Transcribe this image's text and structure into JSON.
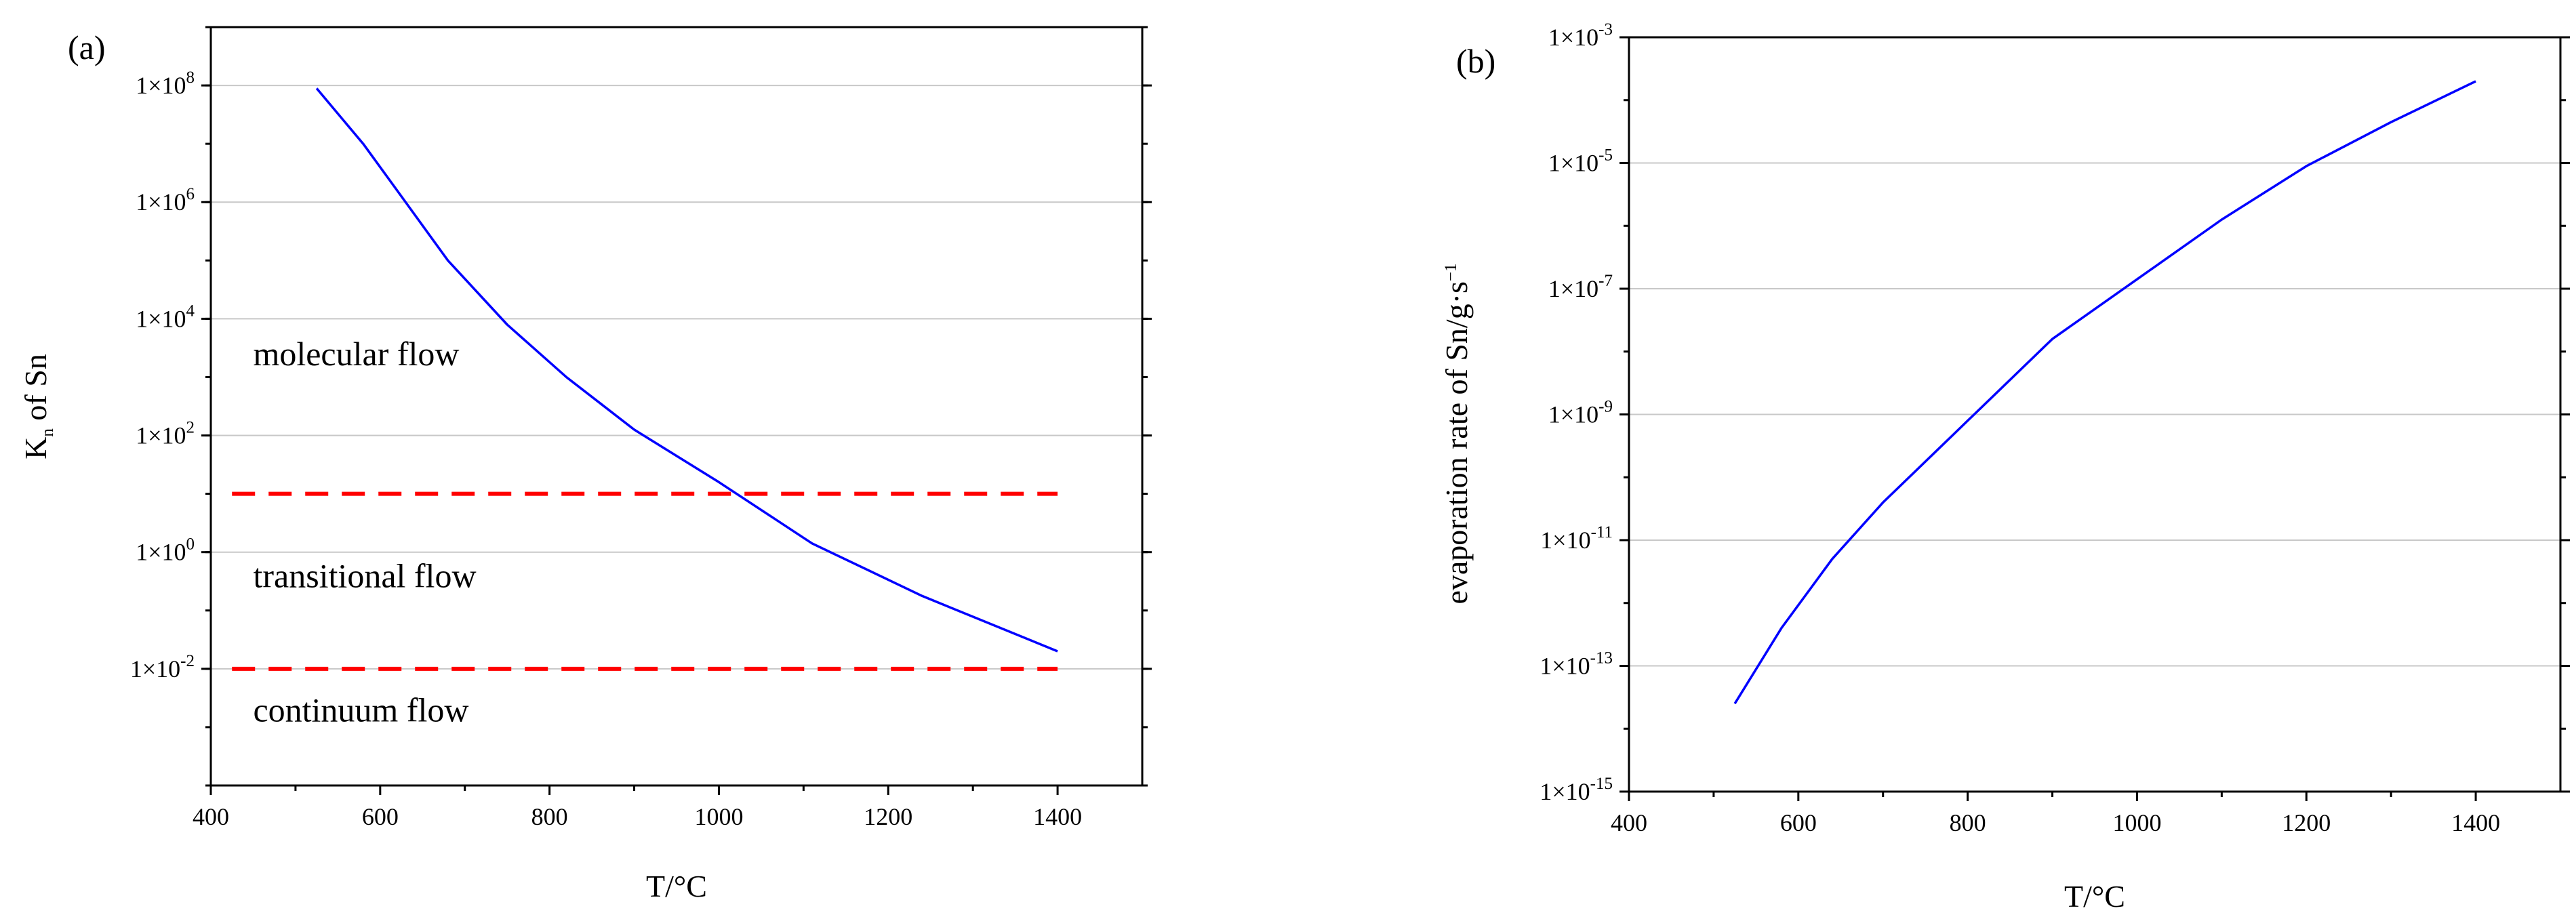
{
  "chart_data": [
    {
      "type": "line",
      "panel_label": "(a)",
      "xlabel": "T/°C",
      "ylabel_main": "K",
      "ylabel_sub": "n",
      "ylabel_rest": " of Sn",
      "y_scale": "log",
      "xlim": [
        400,
        1500
      ],
      "ylim_log10": [
        -4,
        9
      ],
      "x_ticks": [
        {
          "value": 400,
          "label": "400"
        },
        {
          "value": 600,
          "label": "600"
        },
        {
          "value": 800,
          "label": "800"
        },
        {
          "value": 1000,
          "label": "1000"
        },
        {
          "value": 1200,
          "label": "1200"
        },
        {
          "value": 1400,
          "label": "1400"
        }
      ],
      "y_ticks": [
        {
          "exp": 8,
          "base": "1×10",
          "sup": "8"
        },
        {
          "exp": 6,
          "base": "1×10",
          "sup": "6"
        },
        {
          "exp": 4,
          "base": "1×10",
          "sup": "4"
        },
        {
          "exp": 2,
          "base": "1×10",
          "sup": "2"
        },
        {
          "exp": 0,
          "base": "1×10",
          "sup": "0"
        },
        {
          "exp": -2,
          "base": "1×10",
          "sup": "-2"
        }
      ],
      "grid": true,
      "series": [
        {
          "name": "Kn of Sn",
          "color": "#0000ff",
          "x": [
            525,
            580,
            620,
            680,
            750,
            820,
            900,
            1000,
            1110,
            1240,
            1400
          ],
          "log10_y": [
            7.95,
            7.0,
            6.2,
            5.0,
            3.9,
            3.0,
            2.1,
            1.2,
            0.15,
            -0.75,
            -1.7
          ]
        }
      ],
      "reference_lines": [
        {
          "name": "molecular-transitional boundary",
          "log10_y": 1,
          "x_range": [
            425,
            1400
          ],
          "color": "#ff0000",
          "style": "dashed"
        },
        {
          "name": "transitional-continuum boundary",
          "log10_y": -2,
          "x_range": [
            425,
            1400
          ],
          "color": "#ff0000",
          "style": "dashed"
        }
      ],
      "annotations": [
        {
          "text": "molecular flow",
          "x": 450,
          "log10_y": 3.2
        },
        {
          "text": "transitional flow",
          "x": 450,
          "log10_y": -0.6
        },
        {
          "text": "continuum flow",
          "x": 450,
          "log10_y": -2.9
        }
      ]
    },
    {
      "type": "line",
      "panel_label": "(b)",
      "xlabel": "T/°C",
      "ylabel_main": "evaporation rate of Sn/g·s",
      "ylabel_sup": "−1",
      "y_scale": "log",
      "xlim": [
        400,
        1500
      ],
      "ylim_log10": [
        -15,
        -3
      ],
      "x_ticks": [
        {
          "value": 400,
          "label": "400"
        },
        {
          "value": 600,
          "label": "600"
        },
        {
          "value": 800,
          "label": "800"
        },
        {
          "value": 1000,
          "label": "1000"
        },
        {
          "value": 1200,
          "label": "1200"
        },
        {
          "value": 1400,
          "label": "1400"
        }
      ],
      "y_ticks": [
        {
          "exp": -3,
          "base": "1×10",
          "sup": "-3"
        },
        {
          "exp": -5,
          "base": "1×10",
          "sup": "-5"
        },
        {
          "exp": -7,
          "base": "1×10",
          "sup": "-7"
        },
        {
          "exp": -9,
          "base": "1×10",
          "sup": "-9"
        },
        {
          "exp": -11,
          "base": "1×10",
          "sup": "-11"
        },
        {
          "exp": -13,
          "base": "1×10",
          "sup": "-13"
        },
        {
          "exp": -15,
          "base": "1×10",
          "sup": "-15"
        }
      ],
      "grid": true,
      "series": [
        {
          "name": "evaporation rate of Sn",
          "color": "#0000ff",
          "x": [
            525,
            580,
            640,
            700,
            800,
            900,
            1000,
            1100,
            1200,
            1300,
            1400
          ],
          "log10_y": [
            -13.6,
            -12.4,
            -11.3,
            -10.4,
            -9.1,
            -7.8,
            -6.85,
            -5.9,
            -5.05,
            -4.35,
            -3.7
          ]
        }
      ]
    }
  ]
}
